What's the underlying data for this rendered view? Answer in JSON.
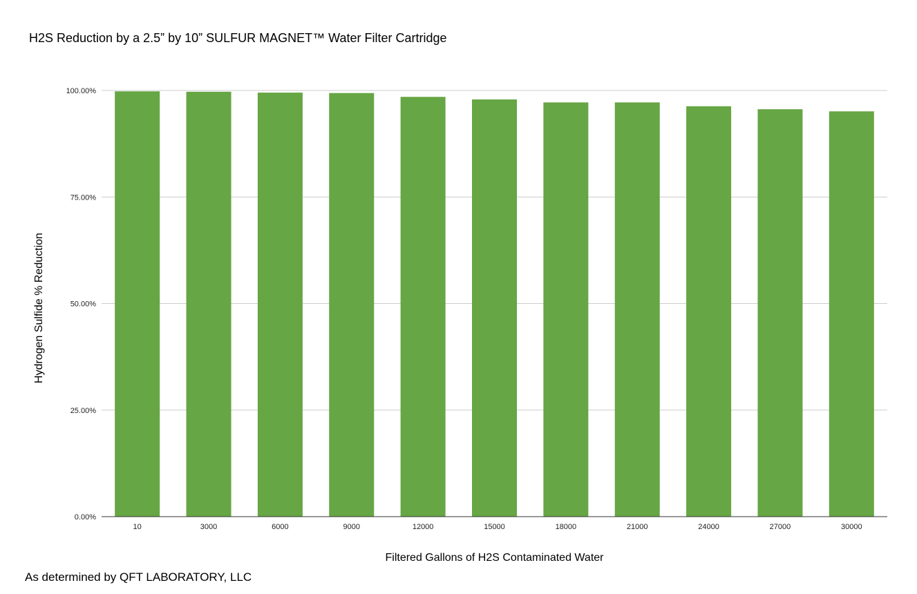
{
  "chart_data": {
    "type": "bar",
    "title": "H2S Reduction by a 2.5” by 10” SULFUR MAGNET™ Water Filter Cartridge",
    "xlabel": "Filtered Gallons of H2S Contaminated Water",
    "ylabel": "Hydrogen Sulfide % Reduction",
    "categories": [
      "10",
      "3000",
      "6000",
      "9000",
      "12000",
      "15000",
      "18000",
      "21000",
      "24000",
      "27000",
      "30000"
    ],
    "values": [
      99.8,
      99.7,
      99.5,
      99.4,
      98.5,
      97.9,
      97.2,
      97.2,
      96.3,
      95.6,
      95.1
    ],
    "ylim": [
      0,
      100
    ],
    "yticks": [
      "0.00%",
      "25.00%",
      "50.00%",
      "75.00%",
      "100.00%"
    ],
    "grid": true,
    "legend": "none",
    "bar_color": "#66a644",
    "footnote": "As determined by QFT LABORATORY, LLC"
  }
}
